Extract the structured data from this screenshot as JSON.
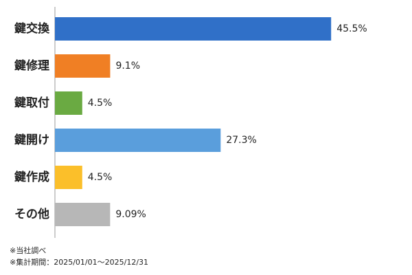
{
  "chart_data": {
    "type": "bar",
    "orientation": "horizontal",
    "categories": [
      "鍵交換",
      "鍵修理",
      "鍵取付",
      "鍵開け",
      "鍵作成",
      "その他"
    ],
    "values": [
      45.5,
      9.1,
      4.5,
      27.3,
      4.5,
      9.09
    ],
    "value_labels": [
      "45.5%",
      "9.1%",
      "4.5%",
      "27.3%",
      "4.5%",
      "9.09%"
    ],
    "colors": [
      "#3070c8",
      "#f07f24",
      "#6aaa42",
      "#5a9edc",
      "#fbbf2a",
      "#b7b7b7"
    ],
    "xlim": [
      0,
      50
    ],
    "notes": [
      "※当社調べ",
      "※集計期間：2025/01/01〜2025/12/31"
    ]
  }
}
